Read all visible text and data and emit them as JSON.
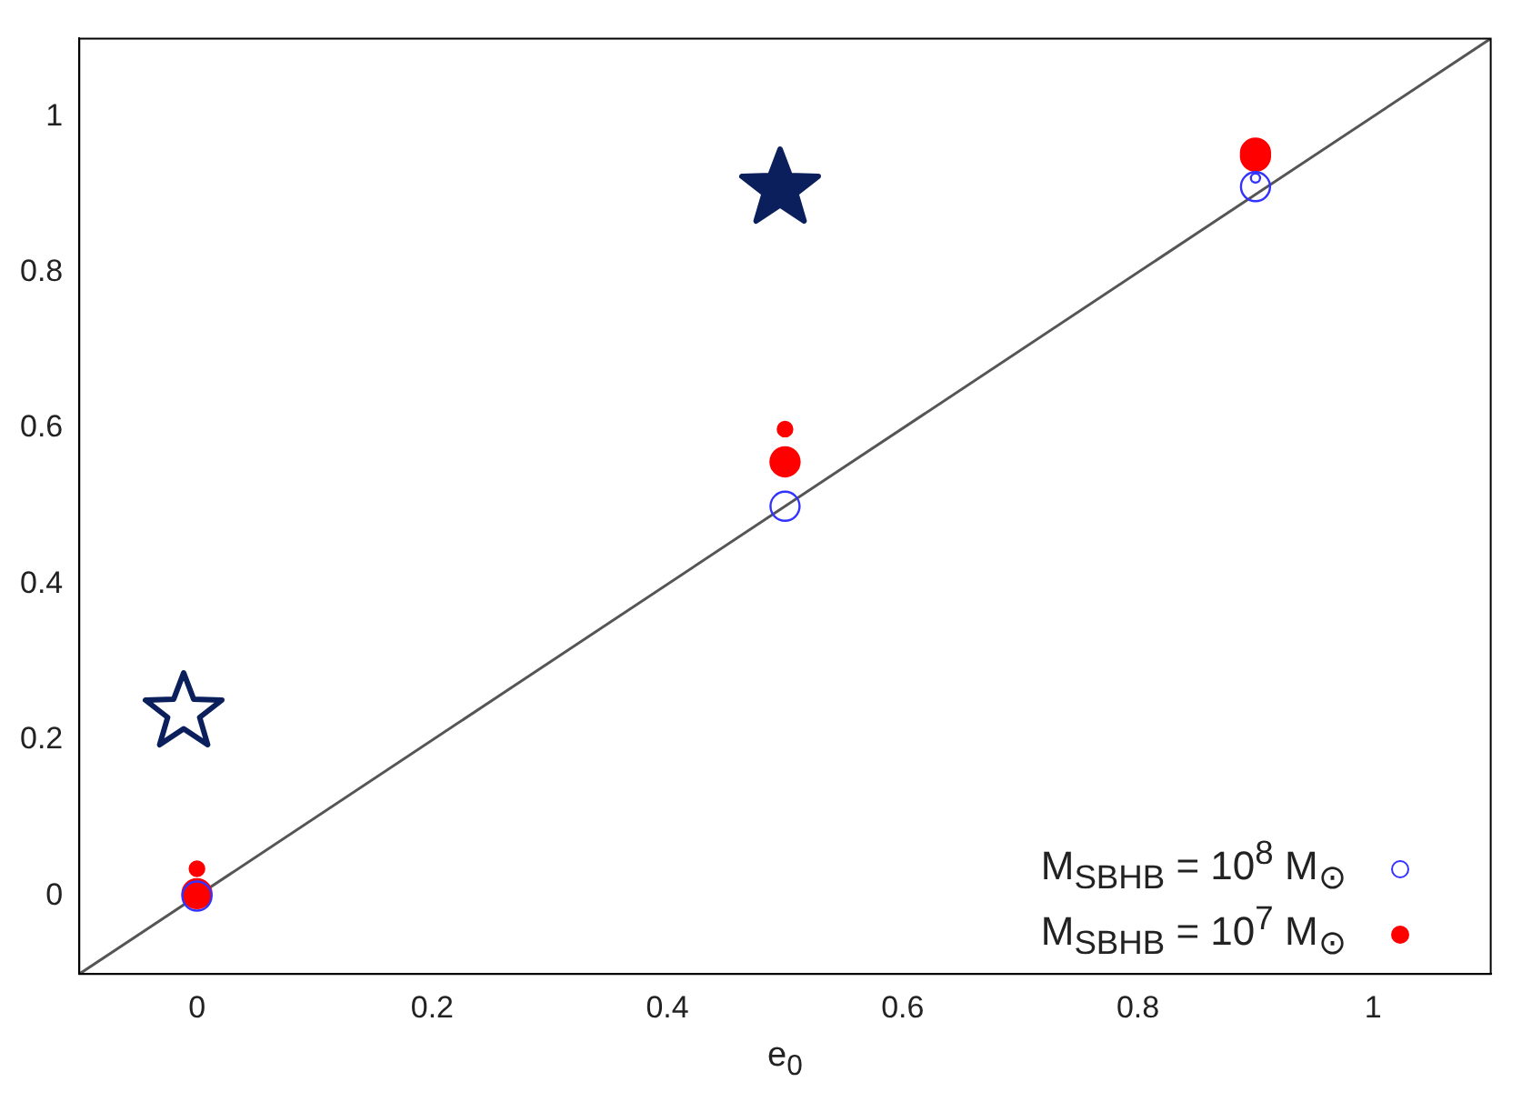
{
  "chart_data": {
    "type": "bubble",
    "xlabel": "e$_{0}$",
    "xlim": [
      -0.1,
      1.1
    ],
    "ylim": [
      -0.1,
      1.1
    ],
    "xticks": [
      0,
      0.2,
      0.4,
      0.6,
      0.8,
      1
    ],
    "yticks": [
      0,
      0.2,
      0.4,
      0.6,
      0.8,
      1
    ],
    "grid": false,
    "legend": "bottom right",
    "marker": "circle",
    "series": [
      {
        "name": "M$_{SBHB}$ = 10$^{8}$ M$_{⊙}$",
        "color": "#3333ff",
        "x": [
          0,
          0.5,
          0.9,
          0.9
        ],
        "values": [
          0,
          0.5,
          0.91,
          0.921
        ],
        "sizes": [
          1,
          1,
          1,
          0.1
        ]
      },
      {
        "name": "M$_{SBHB}$ = 10$^{7}$ M$_{⊙}$",
        "color": "#ff0000",
        "x": [
          0,
          0,
          0.5,
          0.5,
          0.9,
          0.9
        ],
        "values": [
          0.003,
          0.035,
          0.557,
          0.599,
          0.949,
          0.953
        ],
        "sizes": [
          1,
          0.25,
          1,
          0.25,
          1,
          1
        ]
      },
      {
        "type": "line",
        "marker": "none",
        "color": "#555555",
        "x": [
          -0.1,
          1.1
        ],
        "values": [
          -0.1,
          1.1
        ]
      }
    ]
  }
}
